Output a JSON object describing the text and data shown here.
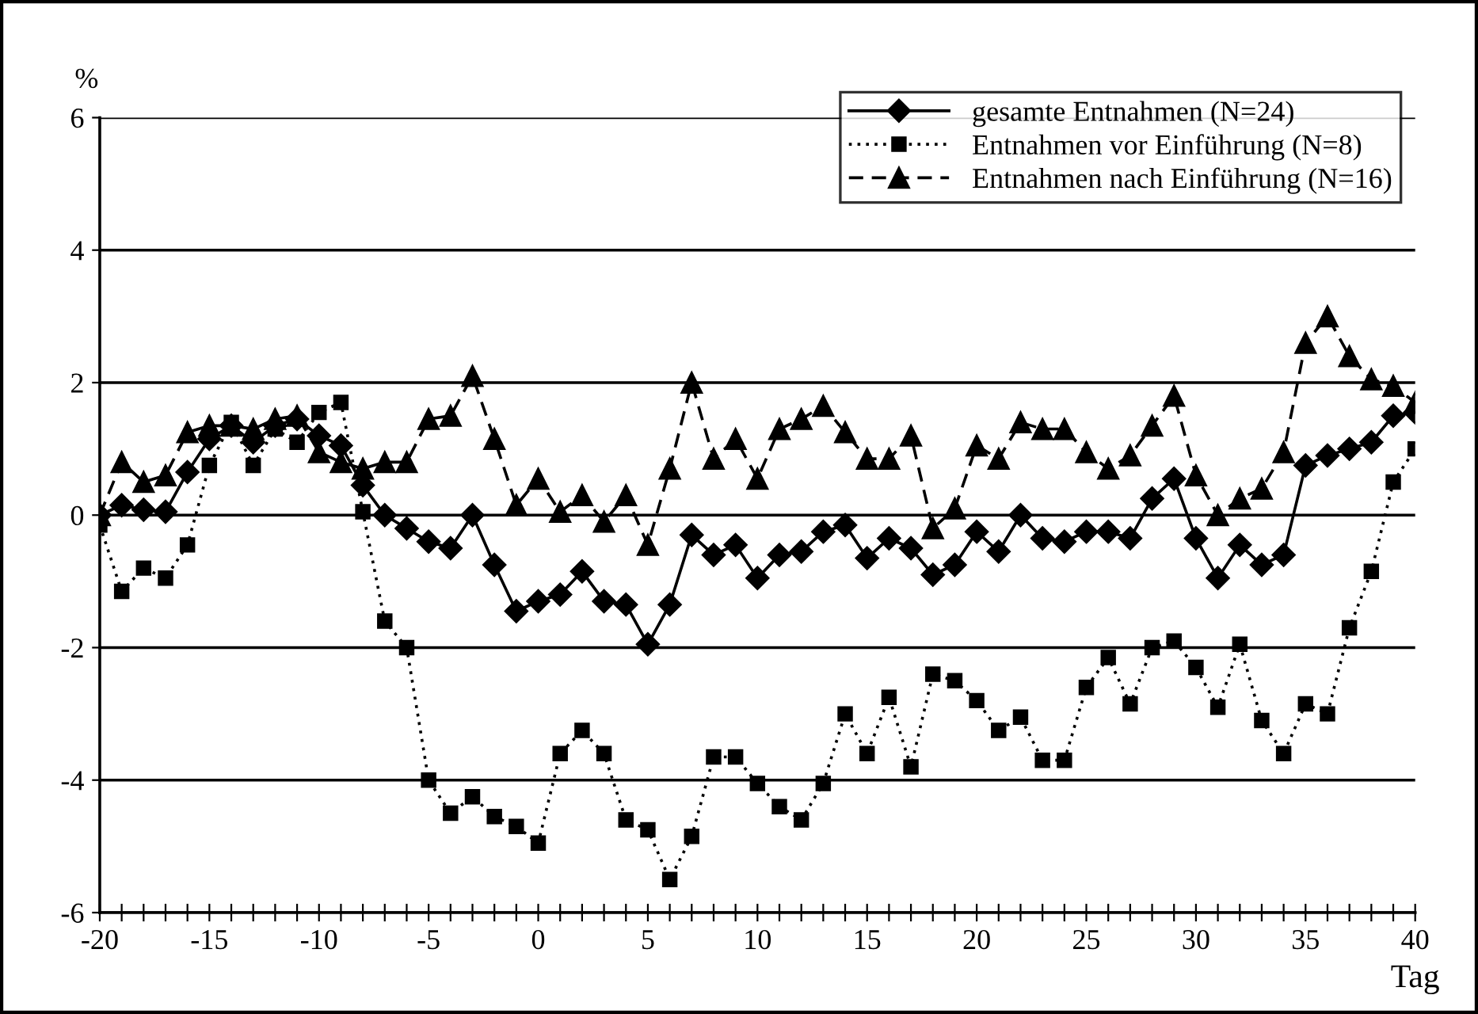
{
  "chart_data": {
    "type": "line",
    "ylabel": "%",
    "xlabel": "Tag",
    "x": [
      -20,
      -19,
      -18,
      -17,
      -16,
      -15,
      -14,
      -13,
      -12,
      -11,
      -10,
      -9,
      -8,
      -7,
      -6,
      -5,
      -4,
      -3,
      -2,
      -1,
      0,
      1,
      2,
      3,
      4,
      5,
      6,
      7,
      8,
      9,
      10,
      11,
      12,
      13,
      14,
      15,
      16,
      17,
      18,
      19,
      20,
      21,
      22,
      23,
      24,
      25,
      26,
      27,
      28,
      29,
      30,
      31,
      32,
      33,
      34,
      35,
      36,
      37,
      38,
      39,
      40
    ],
    "series": [
      {
        "name": "gesamte Entnahmen (N=24)",
        "color": "#000000",
        "marker": "diamond",
        "line_style": "solid",
        "values": [
          0.0,
          0.15,
          0.08,
          0.05,
          0.65,
          1.15,
          1.35,
          1.1,
          1.35,
          1.45,
          1.2,
          1.05,
          0.45,
          0.0,
          -0.2,
          -0.4,
          -0.5,
          0.0,
          -0.75,
          -1.45,
          -1.3,
          -1.2,
          -0.85,
          -1.3,
          -1.35,
          -1.95,
          -1.35,
          -0.3,
          -0.6,
          -0.45,
          -0.95,
          -0.6,
          -0.55,
          -0.25,
          -0.15,
          -0.65,
          -0.35,
          -0.5,
          -0.9,
          -0.75,
          -0.25,
          -0.55,
          0.0,
          -0.35,
          -0.4,
          -0.25,
          -0.25,
          -0.35,
          0.25,
          0.55,
          -0.35,
          -0.95,
          -0.45,
          -0.75,
          -0.6,
          0.75,
          0.9,
          1.0,
          1.1,
          1.5,
          1.55
        ]
      },
      {
        "name": "Entnahmen vor Einführung (N=8)",
        "color": "#000000",
        "marker": "square",
        "line_style": "dotted",
        "values": [
          -0.15,
          -1.15,
          -0.8,
          -0.95,
          -0.45,
          0.75,
          1.4,
          0.75,
          1.3,
          1.1,
          1.55,
          1.7,
          0.05,
          -1.6,
          -2.0,
          -4.0,
          -4.5,
          -4.25,
          -4.55,
          -4.7,
          -4.95,
          -3.6,
          -3.25,
          -3.6,
          -4.6,
          -4.75,
          -5.5,
          -4.85,
          -3.65,
          -3.65,
          -4.05,
          -4.4,
          -4.6,
          -4.05,
          -3.0,
          -3.6,
          -2.75,
          -3.8,
          -2.4,
          -2.5,
          -2.8,
          -3.25,
          -3.05,
          -3.7,
          -3.7,
          -2.6,
          -2.15,
          -2.85,
          -2.0,
          -1.9,
          -2.3,
          -2.9,
          -1.95,
          -3.1,
          -3.6,
          -2.85,
          -3.0,
          -1.7,
          -0.85,
          0.5,
          1.0
        ]
      },
      {
        "name": "Entnahmen nach Einführung (N=16)",
        "color": "#000000",
        "marker": "triangle",
        "line_style": "dashed",
        "values": [
          0.0,
          0.8,
          0.5,
          0.6,
          1.25,
          1.35,
          1.35,
          1.3,
          1.45,
          1.5,
          0.95,
          0.8,
          0.7,
          0.8,
          0.8,
          1.45,
          1.5,
          2.1,
          1.15,
          0.15,
          0.55,
          0.05,
          0.3,
          -0.1,
          0.3,
          -0.45,
          0.7,
          2.0,
          0.85,
          1.15,
          0.55,
          1.3,
          1.45,
          1.65,
          1.25,
          0.85,
          0.85,
          1.2,
          -0.2,
          0.1,
          1.05,
          0.85,
          1.4,
          1.3,
          1.3,
          0.95,
          0.7,
          0.9,
          1.35,
          1.8,
          0.6,
          0.0,
          0.25,
          0.4,
          0.95,
          2.6,
          3.0,
          2.4,
          2.05,
          1.95,
          1.7
        ]
      }
    ],
    "xlim": [
      -20,
      40
    ],
    "ylim": [
      -6,
      6
    ],
    "yticks": [
      -6,
      -4,
      -2,
      0,
      2,
      4,
      6
    ],
    "xticks": [
      -20,
      {
        "value": -19,
        "label": null
      },
      {
        "value": -18,
        "label": null
      },
      {
        "value": -17,
        "label": null
      },
      {
        "value": -16,
        "label": null
      },
      -15,
      {
        "value": -14,
        "label": null
      },
      {
        "value": -13,
        "label": null
      },
      {
        "value": -12,
        "label": null
      },
      {
        "value": -11,
        "label": null
      },
      -10,
      {
        "value": -9,
        "label": null
      },
      {
        "value": -8,
        "label": null
      },
      {
        "value": -7,
        "label": null
      },
      {
        "value": -6,
        "label": null
      },
      -5,
      {
        "value": -4,
        "label": null
      },
      {
        "value": -3,
        "label": null
      },
      {
        "value": -2,
        "label": null
      },
      {
        "value": -1,
        "label": null
      },
      0,
      {
        "value": 1,
        "label": null
      },
      {
        "value": 2,
        "label": null
      },
      {
        "value": 3,
        "label": null
      },
      {
        "value": 4,
        "label": null
      },
      5,
      {
        "value": 6,
        "label": null
      },
      {
        "value": 7,
        "label": null
      },
      {
        "value": 8,
        "label": null
      },
      {
        "value": 9,
        "label": null
      },
      10,
      {
        "value": 11,
        "label": null
      },
      {
        "value": 12,
        "label": null
      },
      {
        "value": 13,
        "label": null
      },
      {
        "value": 14,
        "label": null
      },
      15,
      {
        "value": 16,
        "label": null
      },
      {
        "value": 17,
        "label": null
      },
      {
        "value": 18,
        "label": null
      },
      {
        "value": 19,
        "label": null
      },
      20,
      {
        "value": 21,
        "label": null
      },
      {
        "value": 22,
        "label": null
      },
      {
        "value": 23,
        "label": null
      },
      {
        "value": 24,
        "label": null
      },
      25,
      {
        "value": 26,
        "label": null
      },
      {
        "value": 27,
        "label": null
      },
      {
        "value": 28,
        "label": null
      },
      {
        "value": 29,
        "label": null
      },
      30,
      {
        "value": 31,
        "label": null
      },
      {
        "value": 32,
        "label": null
      },
      {
        "value": 33,
        "label": null
      },
      {
        "value": 34,
        "label": null
      },
      35,
      {
        "value": 36,
        "label": null
      },
      {
        "value": 37,
        "label": null
      },
      {
        "value": 38,
        "label": null
      },
      {
        "value": 39,
        "label": null
      },
      40
    ],
    "grid": "y",
    "legend": "top right"
  }
}
